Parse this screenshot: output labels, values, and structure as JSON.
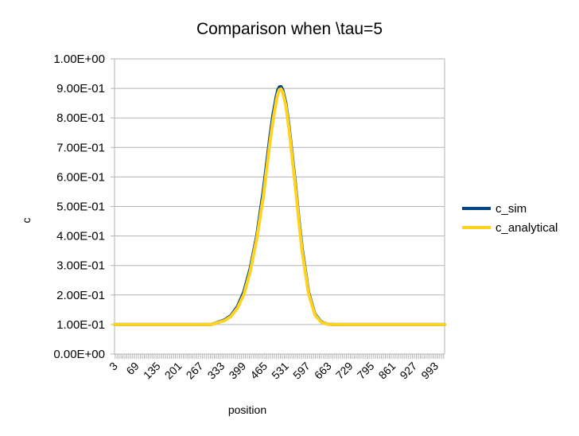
{
  "chart_data": {
    "type": "line",
    "title": "Comparison when \\tau=5",
    "xlabel": "position",
    "ylabel": "c",
    "x_range": [
      1,
      1020
    ],
    "ylim": [
      0,
      1
    ],
    "y_ticks": [
      {
        "value": 0.0,
        "label": "0.00E+00"
      },
      {
        "value": 0.1,
        "label": "1.00E-01"
      },
      {
        "value": 0.2,
        "label": "2.00E-01"
      },
      {
        "value": 0.3,
        "label": "3.00E-01"
      },
      {
        "value": 0.4,
        "label": "4.00E-01"
      },
      {
        "value": 0.5,
        "label": "5.00E-01"
      },
      {
        "value": 0.6,
        "label": "6.00E-01"
      },
      {
        "value": 0.7,
        "label": "7.00E-01"
      },
      {
        "value": 0.8,
        "label": "8.00E-01"
      },
      {
        "value": 0.9,
        "label": "9.00E-01"
      },
      {
        "value": 1.0,
        "label": "1.00E+00"
      }
    ],
    "x_tick_labels": [
      "3",
      "69",
      "135",
      "201",
      "267",
      "333",
      "399",
      "465",
      "531",
      "597",
      "663",
      "729",
      "795",
      "861",
      "927",
      "993"
    ],
    "grid": true,
    "legend_position": "right",
    "series": [
      {
        "name": "c_sim",
        "color": "#004586",
        "x": [
          1,
          300,
          340,
          360,
          380,
          400,
          420,
          440,
          460,
          470,
          480,
          490,
          500,
          505,
          510,
          515,
          520,
          530,
          540,
          550,
          560,
          570,
          580,
          600,
          620,
          640,
          660,
          680,
          700,
          1020
        ],
        "y": [
          0.1,
          0.1,
          0.115,
          0.13,
          0.16,
          0.21,
          0.29,
          0.4,
          0.55,
          0.64,
          0.73,
          0.81,
          0.87,
          0.895,
          0.905,
          0.906,
          0.896,
          0.85,
          0.77,
          0.67,
          0.57,
          0.46,
          0.36,
          0.21,
          0.135,
          0.108,
          0.101,
          0.1,
          0.1,
          0.1
        ]
      },
      {
        "name": "c_analytical",
        "color": "#FFD320",
        "x": [
          1,
          300,
          340,
          360,
          380,
          400,
          420,
          440,
          460,
          470,
          480,
          490,
          500,
          505,
          510,
          515,
          520,
          530,
          540,
          550,
          560,
          570,
          580,
          600,
          620,
          640,
          660,
          680,
          700,
          1020
        ],
        "y": [
          0.1,
          0.1,
          0.113,
          0.127,
          0.155,
          0.2,
          0.28,
          0.39,
          0.53,
          0.62,
          0.71,
          0.79,
          0.855,
          0.882,
          0.896,
          0.898,
          0.888,
          0.842,
          0.76,
          0.66,
          0.56,
          0.45,
          0.35,
          0.205,
          0.132,
          0.107,
          0.101,
          0.1,
          0.1,
          0.1
        ]
      }
    ]
  }
}
